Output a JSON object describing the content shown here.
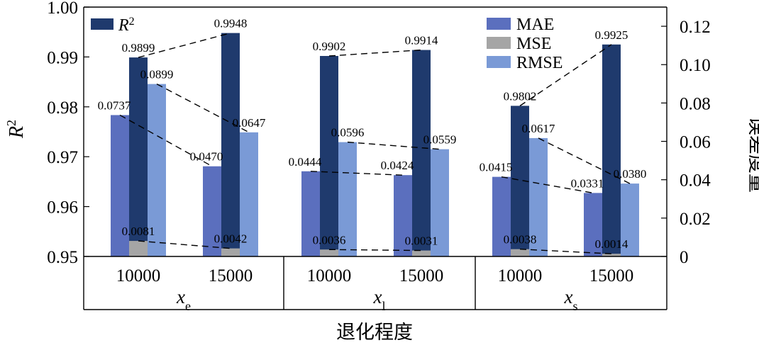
{
  "chart_data": {
    "type": "bar",
    "xlabel": "退化程度",
    "ylabel_left": "R²",
    "ylabel_right": "误差度量",
    "groups": [
      {
        "name": "x_e",
        "base": "x",
        "sub": "e",
        "categories": [
          "10000",
          "15000"
        ]
      },
      {
        "name": "x_l",
        "base": "x",
        "sub": "l",
        "categories": [
          "10000",
          "15000"
        ]
      },
      {
        "name": "x_s",
        "base": "x",
        "sub": "s",
        "categories": [
          "10000",
          "15000"
        ]
      }
    ],
    "y_left": {
      "lim": [
        0.95,
        1.0
      ],
      "ticks": [
        "0.95",
        "0.96",
        "0.97",
        "0.98",
        "0.99",
        "1.00"
      ]
    },
    "y_right": {
      "lim": [
        0,
        0.13
      ],
      "ticks": [
        "0",
        "0.02",
        "0.04",
        "0.06",
        "0.08",
        "0.10",
        "0.12"
      ]
    },
    "series": [
      {
        "name": "R2",
        "axis": "left",
        "color": "#1f3a6d",
        "values": [
          0.9899,
          0.9948,
          0.9902,
          0.9914,
          0.9802,
          0.9925
        ],
        "labels": [
          "0.9899",
          "0.9948",
          "0.9902",
          "0.9914",
          "0.9802",
          "0.9925"
        ]
      },
      {
        "name": "MAE",
        "axis": "right",
        "color": "#5b6fbe",
        "values": [
          0.0737,
          0.047,
          0.0444,
          0.0424,
          0.0415,
          0.0331
        ],
        "labels": [
          "0.0737",
          "0.0470",
          "0.0444",
          "0.0424",
          "0.0415",
          "0.0331"
        ]
      },
      {
        "name": "MSE",
        "axis": "right",
        "color": "#a5a5a5",
        "values": [
          0.0081,
          0.0042,
          0.0036,
          0.0031,
          0.0038,
          0.0014
        ],
        "labels": [
          "0.0081",
          "0.0042",
          "0.0036",
          "0.0031",
          "0.0038",
          "0.0014"
        ]
      },
      {
        "name": "RMSE",
        "axis": "right",
        "color": "#7a9ad6",
        "values": [
          0.0899,
          0.0647,
          0.0596,
          0.0559,
          0.0617,
          0.038
        ],
        "labels": [
          "0.0899",
          "0.0647",
          "0.0596",
          "0.0559",
          "0.0617",
          "0.0380"
        ]
      }
    ],
    "legend": [
      {
        "name": "R",
        "sup": "2",
        "color": "#1f3a6d",
        "placement": "top-left"
      },
      {
        "name": "MAE",
        "color": "#5b6fbe",
        "placement": "top-right"
      },
      {
        "name": "MSE",
        "color": "#a5a5a5",
        "placement": "top-right"
      },
      {
        "name": "RMSE",
        "color": "#7a9ad6",
        "placement": "top-right"
      }
    ],
    "grid": false,
    "connector_lines": "dashed"
  }
}
